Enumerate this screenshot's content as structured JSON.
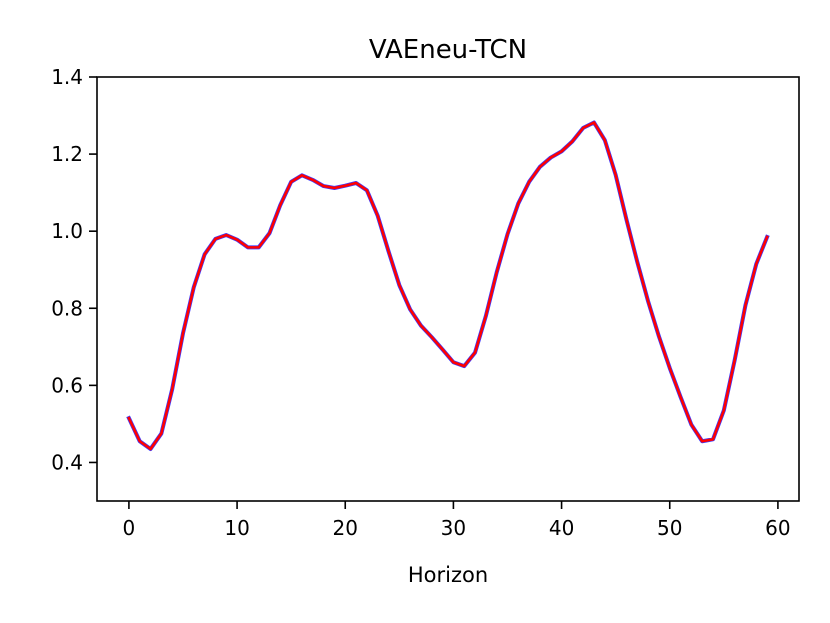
{
  "chart_data": {
    "type": "line",
    "title": "VAEneu-TCN",
    "xlabel": "Horizon",
    "ylabel": "",
    "xlim": [
      -2.95,
      61.95
    ],
    "ylim": [
      0.3,
      1.4
    ],
    "xticks": [
      0,
      10,
      20,
      30,
      40,
      50,
      60
    ],
    "yticks": [
      0.4,
      0.6,
      0.8,
      1.0,
      1.2,
      1.4
    ],
    "xtick_labels": [
      "0",
      "10",
      "20",
      "30",
      "40",
      "50",
      "60"
    ],
    "ytick_labels": [
      "0.4",
      "0.6",
      "0.8",
      "1.0",
      "1.2",
      "1.4"
    ],
    "grid": false,
    "x": [
      0,
      1,
      2,
      3,
      4,
      5,
      6,
      7,
      8,
      9,
      10,
      11,
      12,
      13,
      14,
      15,
      16,
      17,
      18,
      19,
      20,
      21,
      22,
      23,
      24,
      25,
      26,
      27,
      28,
      29,
      30,
      31,
      32,
      33,
      34,
      35,
      36,
      37,
      38,
      39,
      40,
      41,
      42,
      43,
      44,
      45,
      46,
      47,
      48,
      49,
      50,
      51,
      52,
      53,
      54,
      55,
      56,
      57,
      58,
      59
    ],
    "series": [
      {
        "color": "#3a3aff",
        "values": [
          0.515,
          0.455,
          0.435,
          0.475,
          0.59,
          0.735,
          0.855,
          0.94,
          0.98,
          0.99,
          0.978,
          0.958,
          0.958,
          0.995,
          1.068,
          1.128,
          1.145,
          1.133,
          1.117,
          1.112,
          1.118,
          1.125,
          1.106,
          1.04,
          0.948,
          0.86,
          0.797,
          0.755,
          0.725,
          0.693,
          0.66,
          0.65,
          0.685,
          0.78,
          0.893,
          0.992,
          1.072,
          1.128,
          1.167,
          1.191,
          1.207,
          1.233,
          1.268,
          1.282,
          1.236,
          1.146,
          1.03,
          0.92,
          0.818,
          0.727,
          0.645,
          0.57,
          0.498,
          0.455,
          0.46,
          0.535,
          0.665,
          0.808,
          0.915,
          0.985
        ]
      },
      {
        "color": "#ff0000",
        "values": [
          0.515,
          0.455,
          0.435,
          0.475,
          0.59,
          0.735,
          0.855,
          0.94,
          0.98,
          0.99,
          0.978,
          0.958,
          0.958,
          0.995,
          1.068,
          1.128,
          1.145,
          1.133,
          1.117,
          1.112,
          1.118,
          1.125,
          1.106,
          1.04,
          0.948,
          0.86,
          0.797,
          0.755,
          0.725,
          0.693,
          0.66,
          0.65,
          0.685,
          0.78,
          0.893,
          0.992,
          1.072,
          1.128,
          1.167,
          1.191,
          1.207,
          1.233,
          1.268,
          1.282,
          1.236,
          1.146,
          1.03,
          0.92,
          0.818,
          0.727,
          0.645,
          0.57,
          0.498,
          0.455,
          0.46,
          0.535,
          0.665,
          0.808,
          0.915,
          0.985
        ]
      }
    ]
  }
}
